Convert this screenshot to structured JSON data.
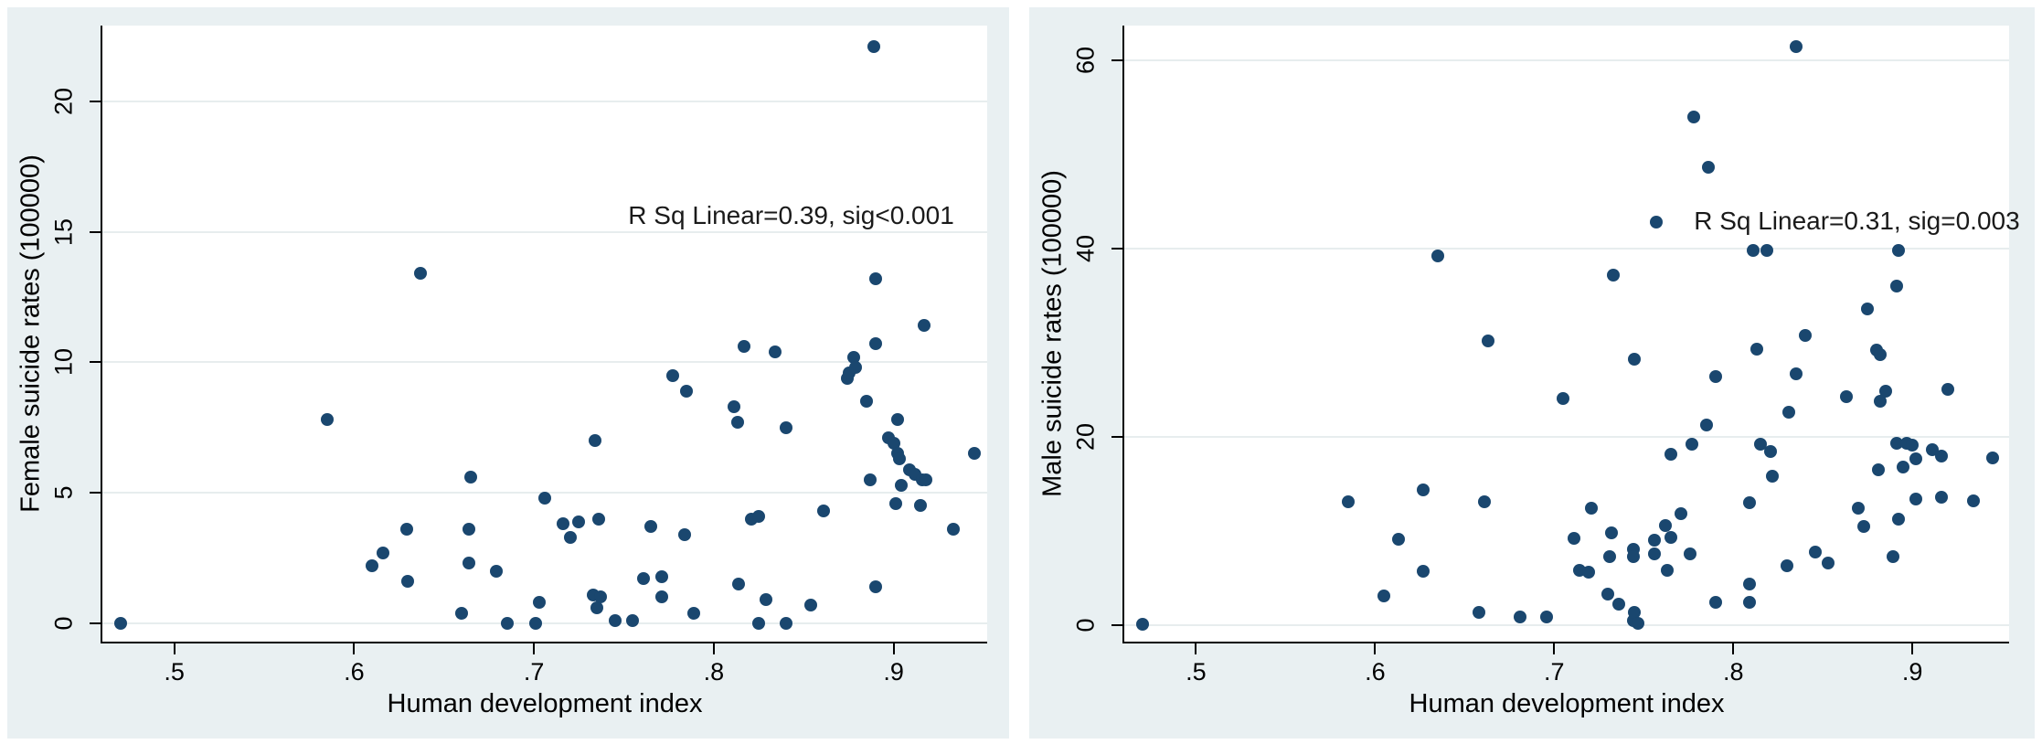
{
  "figure": {
    "description": "Two-panel scatter plot of suicide rates versus human development index",
    "background_color": "#e9f0f2",
    "plot_background": "#ffffff",
    "marker_color": "#1a476f",
    "gridline_color": "#e7edee",
    "axis_color": "#000000"
  },
  "chart_data": [
    {
      "type": "scatter",
      "title": "",
      "xlabel": "Human development index",
      "ylabel": "Female suicide rates (100000)",
      "annotation": "R Sq Linear=0.39, sig<0.001",
      "annotation_at": [
        0.843,
        15.6
      ],
      "xlim": [
        0.46,
        0.952
      ],
      "ylim": [
        -0.7,
        22.9
      ],
      "x_ticks": {
        "labels": [
          ".5",
          ".6",
          ".7",
          ".8",
          ".9"
        ],
        "values": [
          0.5,
          0.6,
          0.7,
          0.8,
          0.9
        ]
      },
      "y_ticks": {
        "labels": [
          "0",
          "5",
          "10",
          "15",
          "20"
        ],
        "values": [
          0,
          5,
          10,
          15,
          20
        ]
      },
      "grid": "horizontal",
      "legend": "none",
      "marker_color": "#1a476f",
      "points": [
        [
          0.47,
          0.0
        ],
        [
          0.585,
          7.8
        ],
        [
          0.61,
          2.2
        ],
        [
          0.616,
          2.7
        ],
        [
          0.629,
          3.6
        ],
        [
          0.63,
          1.6
        ],
        [
          0.637,
          13.4
        ],
        [
          0.66,
          0.4
        ],
        [
          0.664,
          3.6
        ],
        [
          0.664,
          2.3
        ],
        [
          0.665,
          5.6
        ],
        [
          0.679,
          2.0
        ],
        [
          0.685,
          0.0
        ],
        [
          0.701,
          0.0
        ],
        [
          0.703,
          0.8
        ],
        [
          0.706,
          4.8
        ],
        [
          0.716,
          3.8
        ],
        [
          0.72,
          3.3
        ],
        [
          0.725,
          3.9
        ],
        [
          0.733,
          1.1
        ],
        [
          0.734,
          7.0
        ],
        [
          0.735,
          0.6
        ],
        [
          0.736,
          4.0
        ],
        [
          0.737,
          1.0
        ],
        [
          0.745,
          0.1
        ],
        [
          0.755,
          0.1
        ],
        [
          0.761,
          1.7
        ],
        [
          0.765,
          3.7
        ],
        [
          0.771,
          1.8
        ],
        [
          0.771,
          1.0
        ],
        [
          0.777,
          9.5
        ],
        [
          0.784,
          3.4
        ],
        [
          0.785,
          8.9
        ],
        [
          0.789,
          0.4
        ],
        [
          0.811,
          8.3
        ],
        [
          0.813,
          7.7
        ],
        [
          0.814,
          1.5
        ],
        [
          0.817,
          10.6
        ],
        [
          0.821,
          4.0
        ],
        [
          0.825,
          4.1
        ],
        [
          0.825,
          0.0
        ],
        [
          0.829,
          0.9
        ],
        [
          0.834,
          10.4
        ],
        [
          0.84,
          7.5
        ],
        [
          0.84,
          0.0
        ],
        [
          0.854,
          0.7
        ],
        [
          0.861,
          4.3
        ],
        [
          0.874,
          9.4
        ],
        [
          0.875,
          9.6
        ],
        [
          0.878,
          10.2
        ],
        [
          0.879,
          9.8
        ],
        [
          0.885,
          8.5
        ],
        [
          0.887,
          5.5
        ],
        [
          0.889,
          22.1
        ],
        [
          0.89,
          13.2
        ],
        [
          0.89,
          10.7
        ],
        [
          0.89,
          1.4
        ],
        [
          0.897,
          7.1
        ],
        [
          0.9,
          6.9
        ],
        [
          0.901,
          4.6
        ],
        [
          0.902,
          6.5
        ],
        [
          0.902,
          7.8
        ],
        [
          0.903,
          6.3
        ],
        [
          0.904,
          5.3
        ],
        [
          0.909,
          5.9
        ],
        [
          0.912,
          5.7
        ],
        [
          0.915,
          4.5
        ],
        [
          0.916,
          5.5
        ],
        [
          0.918,
          5.5
        ],
        [
          0.917,
          11.4
        ],
        [
          0.933,
          3.6
        ],
        [
          0.945,
          6.5
        ]
      ]
    },
    {
      "type": "scatter",
      "title": "",
      "xlabel": "Human development index",
      "ylabel": "Male suicide rates (100000)",
      "annotation": "R Sq Linear=0.31, sig=0.003",
      "annotation_at": [
        0.869,
        42.9
      ],
      "xlim": [
        0.46,
        0.954
      ],
      "ylim": [
        -1.75,
        63.7
      ],
      "x_ticks": {
        "labels": [
          ".5",
          ".6",
          ".7",
          ".8",
          ".9"
        ],
        "values": [
          0.5,
          0.6,
          0.7,
          0.8,
          0.9
        ]
      },
      "y_ticks": {
        "labels": [
          "0",
          "20",
          "40",
          "60"
        ],
        "values": [
          0,
          20,
          40,
          60
        ]
      },
      "grid": "horizontal",
      "legend": "none",
      "marker_color": "#1a476f",
      "points": [
        [
          0.47,
          0.1
        ],
        [
          0.585,
          13.1
        ],
        [
          0.605,
          3.1
        ],
        [
          0.613,
          9.1
        ],
        [
          0.627,
          14.4
        ],
        [
          0.627,
          5.7
        ],
        [
          0.635,
          39.2
        ],
        [
          0.658,
          1.4
        ],
        [
          0.661,
          13.1
        ],
        [
          0.663,
          30.2
        ],
        [
          0.681,
          0.9
        ],
        [
          0.696,
          0.9
        ],
        [
          0.705,
          24.1
        ],
        [
          0.711,
          9.2
        ],
        [
          0.714,
          5.8
        ],
        [
          0.719,
          5.6
        ],
        [
          0.721,
          12.4
        ],
        [
          0.73,
          3.3
        ],
        [
          0.731,
          7.3
        ],
        [
          0.732,
          9.8
        ],
        [
          0.733,
          37.2
        ],
        [
          0.736,
          2.2
        ],
        [
          0.744,
          8.1
        ],
        [
          0.744,
          7.3
        ],
        [
          0.744,
          0.5
        ],
        [
          0.745,
          28.3
        ],
        [
          0.745,
          1.4
        ],
        [
          0.747,
          0.2
        ],
        [
          0.756,
          9.0
        ],
        [
          0.756,
          7.6
        ],
        [
          0.757,
          42.8
        ],
        [
          0.762,
          10.6
        ],
        [
          0.763,
          5.8
        ],
        [
          0.765,
          18.2
        ],
        [
          0.765,
          9.3
        ],
        [
          0.771,
          11.8
        ],
        [
          0.776,
          7.6
        ],
        [
          0.777,
          19.2
        ],
        [
          0.778,
          54.0
        ],
        [
          0.785,
          21.3
        ],
        [
          0.786,
          48.6
        ],
        [
          0.79,
          26.4
        ],
        [
          0.79,
          2.4
        ],
        [
          0.809,
          13.0
        ],
        [
          0.809,
          4.4
        ],
        [
          0.809,
          2.4
        ],
        [
          0.811,
          39.8
        ],
        [
          0.813,
          29.3
        ],
        [
          0.815,
          19.2
        ],
        [
          0.819,
          39.8
        ],
        [
          0.821,
          18.4
        ],
        [
          0.822,
          15.8
        ],
        [
          0.83,
          6.3
        ],
        [
          0.831,
          22.6
        ],
        [
          0.835,
          61.5
        ],
        [
          0.835,
          26.7
        ],
        [
          0.84,
          30.8
        ],
        [
          0.846,
          7.8
        ],
        [
          0.853,
          6.6
        ],
        [
          0.863,
          24.3
        ],
        [
          0.87,
          12.4
        ],
        [
          0.873,
          10.5
        ],
        [
          0.875,
          33.6
        ],
        [
          0.88,
          29.2
        ],
        [
          0.881,
          16.5
        ],
        [
          0.882,
          28.7
        ],
        [
          0.882,
          23.8
        ],
        [
          0.885,
          24.9
        ],
        [
          0.889,
          7.3
        ],
        [
          0.891,
          36.0
        ],
        [
          0.891,
          19.3
        ],
        [
          0.892,
          39.8
        ],
        [
          0.892,
          11.3
        ],
        [
          0.895,
          16.8
        ],
        [
          0.897,
          19.3
        ],
        [
          0.9,
          19.1
        ],
        [
          0.902,
          17.7
        ],
        [
          0.902,
          13.4
        ],
        [
          0.911,
          18.6
        ],
        [
          0.916,
          18.0
        ],
        [
          0.916,
          13.6
        ],
        [
          0.92,
          25.1
        ],
        [
          0.934,
          13.2
        ],
        [
          0.945,
          17.8
        ]
      ]
    }
  ]
}
